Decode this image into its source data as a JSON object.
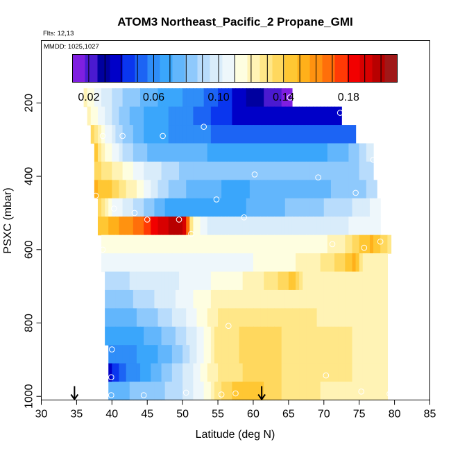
{
  "chart_data": {
    "type": "heatmap",
    "title": "ATOM3 Northeast_Pacific_2 Propane_GMI",
    "annotations": {
      "flights": "Flts: 12,13",
      "dates": "MMDD: 1025,1027"
    },
    "xlabel": "Latitude (deg N)",
    "ylabel": "PSXC (mbar)",
    "xlim": [
      30,
      85
    ],
    "ylim": [
      1010,
      30
    ],
    "x_ticks": [
      30,
      35,
      40,
      45,
      50,
      55,
      60,
      65,
      70,
      75,
      80,
      85
    ],
    "y_ticks": [
      200,
      400,
      600,
      800,
      1000
    ],
    "colorbar": {
      "range": [
        0.01,
        0.21
      ],
      "tick_values": [
        0.02,
        0.06,
        0.1,
        0.14,
        0.18
      ],
      "tick_labels": [
        "0.02",
        "0.06",
        "0.10",
        "0.14",
        "0.18"
      ],
      "colors": [
        "#7f1fe0",
        "#4a1ad0",
        "#00009f",
        "#0000c8",
        "#0a36ee",
        "#1c64f4",
        "#2f8df8",
        "#3aa6fb",
        "#62b6fc",
        "#8ec9fc",
        "#b8dcfc",
        "#d9ecfa",
        "#eef7fb",
        "#fefee0",
        "#fff3b5",
        "#ffe788",
        "#ffd85e",
        "#ffc733",
        "#ffb01a",
        "#ff9210",
        "#ff6f0a",
        "#ff3a05",
        "#f20000",
        "#d80000",
        "#b80000",
        "#a01818"
      ],
      "color_stops": [
        0.01,
        0.02,
        0.03,
        0.04,
        0.05,
        0.06,
        0.07,
        0.08,
        0.09,
        0.1,
        0.11,
        0.12,
        0.13,
        0.14,
        0.15,
        0.16,
        0.17,
        0.18,
        0.19,
        0.2,
        0.21
      ]
    },
    "series": [
      {
        "name": "band_180mbar",
        "p_top": 160,
        "p_bot": 210,
        "lat_start": 36,
        "lat_end": 65.5,
        "knots": [
          [
            36,
            0.12
          ],
          [
            38,
            0.105
          ],
          [
            42,
            0.085
          ],
          [
            47,
            0.07
          ],
          [
            52,
            0.06
          ],
          [
            56,
            0.045
          ],
          [
            60,
            0.03
          ],
          [
            63,
            0.022
          ],
          [
            65.5,
            0.012
          ]
        ]
      },
      {
        "name": "band_230mbar",
        "p_top": 210,
        "p_bot": 260,
        "lat_start": 36.5,
        "lat_end": 72.5,
        "knots": [
          [
            36.5,
            0.12
          ],
          [
            38,
            0.11
          ],
          [
            41,
            0.085
          ],
          [
            45,
            0.07
          ],
          [
            50,
            0.06
          ],
          [
            55,
            0.045
          ],
          [
            60,
            0.035
          ],
          [
            65,
            0.035
          ],
          [
            72.5,
            0.035
          ]
        ]
      },
      {
        "name": "band_285mbar",
        "p_top": 260,
        "p_bot": 310,
        "lat_start": 37,
        "lat_end": 74.5,
        "knots": [
          [
            37,
            0.14
          ],
          [
            38.5,
            0.115
          ],
          [
            41,
            0.09
          ],
          [
            45,
            0.07
          ],
          [
            50,
            0.06
          ],
          [
            55,
            0.055
          ],
          [
            60,
            0.055
          ],
          [
            65,
            0.055
          ],
          [
            74.5,
            0.055
          ]
        ]
      },
      {
        "name": "band_335mbar",
        "p_top": 310,
        "p_bot": 360,
        "lat_start": 37.5,
        "lat_end": 77,
        "knots": [
          [
            37.5,
            0.145
          ],
          [
            39,
            0.12
          ],
          [
            42,
            0.09
          ],
          [
            46,
            0.075
          ],
          [
            50,
            0.075
          ],
          [
            55,
            0.07
          ],
          [
            60,
            0.07
          ],
          [
            70,
            0.07
          ],
          [
            74,
            0.08
          ],
          [
            77,
            0.1
          ]
        ]
      },
      {
        "name": "band_385mbar",
        "p_top": 360,
        "p_bot": 410,
        "lat_start": 37.5,
        "lat_end": 77,
        "knots": [
          [
            37.5,
            0.14
          ],
          [
            39,
            0.13
          ],
          [
            41,
            0.12
          ],
          [
            45,
            0.1
          ],
          [
            50,
            0.085
          ],
          [
            55,
            0.08
          ],
          [
            60,
            0.08
          ],
          [
            70,
            0.08
          ],
          [
            77,
            0.09
          ]
        ]
      },
      {
        "name": "band_435mbar",
        "p_top": 410,
        "p_bot": 460,
        "lat_start": 37.5,
        "lat_end": 77.5,
        "knots": [
          [
            37.5,
            0.15
          ],
          [
            40,
            0.14
          ],
          [
            43,
            0.12
          ],
          [
            47,
            0.09
          ],
          [
            52,
            0.075
          ],
          [
            57,
            0.07
          ],
          [
            65,
            0.075
          ],
          [
            72,
            0.08
          ],
          [
            77.5,
            0.09
          ]
        ]
      },
      {
        "name": "band_485mbar",
        "p_top": 460,
        "p_bot": 510,
        "lat_start": 38,
        "lat_end": 78,
        "knots": [
          [
            38,
            0.14
          ],
          [
            40,
            0.11
          ],
          [
            44,
            0.09
          ],
          [
            48,
            0.07
          ],
          [
            53,
            0.065
          ],
          [
            58,
            0.07
          ],
          [
            65,
            0.08
          ],
          [
            72,
            0.09
          ],
          [
            76,
            0.1
          ],
          [
            78,
            0.11
          ]
        ]
      },
      {
        "name": "band_535mbar",
        "p_top": 510,
        "p_bot": 560,
        "lat_start": 38,
        "lat_end": 78,
        "knots": [
          [
            38,
            0.14
          ],
          [
            40,
            0.15
          ],
          [
            42,
            0.16
          ],
          [
            44.5,
            0.17
          ],
          [
            47,
            0.19
          ],
          [
            49.5,
            0.2
          ],
          [
            50.5,
            0.185
          ],
          [
            51.5,
            0.115
          ],
          [
            54,
            0.1
          ],
          [
            60,
            0.095
          ],
          [
            70,
            0.1
          ],
          [
            78,
            0.105
          ]
        ]
      },
      {
        "name": "band_585mbar",
        "p_top": 560,
        "p_bot": 610,
        "lat_start": 38.5,
        "lat_end": 79.5,
        "knots": [
          [
            38.5,
            0.11
          ],
          [
            45,
            0.11
          ],
          [
            55,
            0.11
          ],
          [
            65,
            0.11
          ],
          [
            72,
            0.12
          ],
          [
            75,
            0.14
          ],
          [
            77,
            0.15
          ],
          [
            79.5,
            0.13
          ]
        ]
      },
      {
        "name": "band_635mbar",
        "p_top": 610,
        "p_bot": 660,
        "lat_start": 38.5,
        "lat_end": 79,
        "knots": [
          [
            38.5,
            0.11
          ],
          [
            45,
            0.105
          ],
          [
            50,
            0.105
          ],
          [
            60,
            0.11
          ],
          [
            68,
            0.12
          ],
          [
            73,
            0.14
          ],
          [
            74.5,
            0.155
          ],
          [
            75.5,
            0.12
          ],
          [
            79,
            0.12
          ]
        ]
      },
      {
        "name": "band_685mbar",
        "p_top": 660,
        "p_bot": 710,
        "lat_start": 39,
        "lat_end": 79,
        "knots": [
          [
            39,
            0.09
          ],
          [
            43,
            0.095
          ],
          [
            48,
            0.1
          ],
          [
            54,
            0.11
          ],
          [
            60,
            0.12
          ],
          [
            64,
            0.135
          ],
          [
            65.5,
            0.145
          ],
          [
            67,
            0.125
          ],
          [
            72,
            0.125
          ],
          [
            79,
            0.12
          ]
        ]
      },
      {
        "name": "band_735mbar",
        "p_top": 710,
        "p_bot": 760,
        "lat_start": 39,
        "lat_end": 79,
        "knots": [
          [
            39,
            0.08
          ],
          [
            42,
            0.085
          ],
          [
            46,
            0.095
          ],
          [
            50,
            0.105
          ],
          [
            55,
            0.12
          ],
          [
            60,
            0.125
          ],
          [
            70,
            0.125
          ],
          [
            79,
            0.12
          ]
        ]
      },
      {
        "name": "band_785mbar",
        "p_top": 760,
        "p_bot": 810,
        "lat_start": 39,
        "lat_end": 79,
        "knots": [
          [
            39,
            0.075
          ],
          [
            42,
            0.075
          ],
          [
            46,
            0.085
          ],
          [
            50,
            0.1
          ],
          [
            53,
            0.115
          ],
          [
            56,
            0.13
          ],
          [
            60,
            0.13
          ],
          [
            70,
            0.125
          ],
          [
            79,
            0.12
          ]
        ]
      },
      {
        "name": "band_835mbar",
        "p_top": 810,
        "p_bot": 860,
        "lat_start": 39,
        "lat_end": 79,
        "knots": [
          [
            39,
            0.065
          ],
          [
            42,
            0.065
          ],
          [
            46,
            0.075
          ],
          [
            50,
            0.09
          ],
          [
            53,
            0.11
          ],
          [
            55,
            0.13
          ],
          [
            60,
            0.135
          ],
          [
            70,
            0.13
          ],
          [
            79,
            0.12
          ]
        ]
      },
      {
        "name": "band_885mbar",
        "p_top": 860,
        "p_bot": 910,
        "lat_start": 39.5,
        "lat_end": 79,
        "knots": [
          [
            39.5,
            0.06
          ],
          [
            42,
            0.06
          ],
          [
            46,
            0.07
          ],
          [
            50,
            0.085
          ],
          [
            53,
            0.11
          ],
          [
            55,
            0.13
          ],
          [
            60,
            0.135
          ],
          [
            70,
            0.13
          ],
          [
            79,
            0.12
          ]
        ]
      },
      {
        "name": "band_935mbar",
        "p_top": 910,
        "p_bot": 960,
        "lat_start": 39.5,
        "lat_end": 79,
        "knots": [
          [
            39.5,
            0.035
          ],
          [
            41,
            0.05
          ],
          [
            44,
            0.065
          ],
          [
            48,
            0.085
          ],
          [
            51,
            0.1
          ],
          [
            54,
            0.12
          ],
          [
            56,
            0.13
          ],
          [
            60,
            0.135
          ],
          [
            70,
            0.13
          ],
          [
            79,
            0.12
          ]
        ]
      },
      {
        "name": "band_985mbar",
        "p_top": 960,
        "p_bot": 1010,
        "lat_start": 39.5,
        "lat_end": 79,
        "knots": [
          [
            39.5,
            0.075
          ],
          [
            43,
            0.08
          ],
          [
            47,
            0.085
          ],
          [
            50,
            0.095
          ],
          [
            53,
            0.11
          ],
          [
            55,
            0.13
          ],
          [
            58,
            0.145
          ],
          [
            62,
            0.14
          ],
          [
            65,
            0.13
          ],
          [
            70,
            0.125
          ],
          [
            79,
            0.12
          ]
        ]
      }
    ],
    "observations": [
      {
        "lat": 65.2,
        "p": 185
      },
      {
        "lat": 72.3,
        "p": 227
      },
      {
        "lat": 53.0,
        "p": 265
      },
      {
        "lat": 38.7,
        "p": 290
      },
      {
        "lat": 41.5,
        "p": 290
      },
      {
        "lat": 47.2,
        "p": 290
      },
      {
        "lat": 77.0,
        "p": 355
      },
      {
        "lat": 60.2,
        "p": 395
      },
      {
        "lat": 69.2,
        "p": 403
      },
      {
        "lat": 74.5,
        "p": 445
      },
      {
        "lat": 37.7,
        "p": 453
      },
      {
        "lat": 54.8,
        "p": 463
      },
      {
        "lat": 40.3,
        "p": 488
      },
      {
        "lat": 43.2,
        "p": 500
      },
      {
        "lat": 58.7,
        "p": 512
      },
      {
        "lat": 45.0,
        "p": 518
      },
      {
        "lat": 49.5,
        "p": 518
      },
      {
        "lat": 51.2,
        "p": 557
      },
      {
        "lat": 71.2,
        "p": 585
      },
      {
        "lat": 78.0,
        "p": 578
      },
      {
        "lat": 75.7,
        "p": 595
      },
      {
        "lat": 38.7,
        "p": 600
      },
      {
        "lat": 56.5,
        "p": 808
      },
      {
        "lat": 40.0,
        "p": 872
      },
      {
        "lat": 39.9,
        "p": 948
      },
      {
        "lat": 70.3,
        "p": 943
      },
      {
        "lat": 39.9,
        "p": 997
      },
      {
        "lat": 44.5,
        "p": 997
      },
      {
        "lat": 50.5,
        "p": 990
      },
      {
        "lat": 55.5,
        "p": 995
      },
      {
        "lat": 57.5,
        "p": 992
      },
      {
        "lat": 75.3,
        "p": 987
      },
      {
        "lat": 79.3,
        "p": 993
      }
    ],
    "arrows": [
      {
        "lat": 34.7
      },
      {
        "lat": 61.2
      }
    ]
  }
}
